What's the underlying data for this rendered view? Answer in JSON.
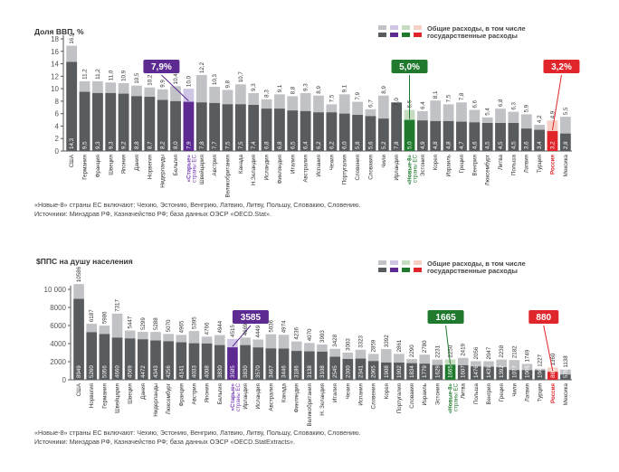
{
  "chart_data": [
    {
      "type": "bar",
      "stacked_overlay": true,
      "title": "Доля ВВП, %",
      "ylabel": "Доля ВВП, %",
      "xlabel": "",
      "ylim": [
        0,
        18
      ],
      "yticks": [
        0,
        2,
        4,
        6,
        8,
        10,
        12,
        14,
        16,
        18
      ],
      "legend": {
        "position": "top-right",
        "total_label": "Общие расходы, в том числе",
        "gov_label": "государственные расходы"
      },
      "categories": [
        "США",
        "Германия",
        "Франция",
        "Швеция",
        "Япония",
        "Дания",
        "Норвегия",
        "Нидерланды",
        "Бельгия",
        "«Старые» страны ЕС",
        "Швейцария",
        "Австрия",
        "Великобритания",
        "Канада",
        "Н.Зеландия",
        "Исландия",
        "Финляндия",
        "Италия",
        "Австралия",
        "Испания",
        "Чехия",
        "Португалия",
        "Словения",
        "Словакия",
        "Чили",
        "Ирландия",
        "«Новые-8» страны ЕС",
        "Эстония",
        "Корея",
        "Израиль",
        "Греция",
        "Венгрия",
        "Люксембург",
        "Литва",
        "Польша",
        "Латвия",
        "Турция",
        "Россия",
        "Мексика"
      ],
      "series": [
        {
          "name": "Общие расходы",
          "values": [
            16.9,
            11.2,
            11.2,
            11.0,
            10.9,
            10.5,
            10.2,
            9.9,
            10.4,
            10.0,
            12.2,
            10.3,
            9.8,
            10.7,
            9.3,
            8.3,
            9.1,
            8.8,
            9.3,
            8.9,
            7.5,
            9.1,
            7.9,
            6.7,
            8.9,
            7.0,
            6.6,
            6.4,
            8.1,
            7.5,
            7.8,
            6.6,
            5.4,
            6.8,
            6.3,
            5.9,
            4.2,
            4.9,
            5.5
          ]
        },
        {
          "name": "Государственные расходы",
          "values": [
            14.3,
            9.5,
            9.3,
            9.3,
            9.2,
            8.8,
            8.7,
            8.2,
            8.0,
            7.9,
            7.8,
            7.7,
            7.5,
            7.5,
            7.4,
            6.8,
            6.8,
            6.5,
            6.4,
            6.2,
            6.2,
            6.0,
            5.8,
            5.6,
            5.2,
            7.8,
            5.0,
            4.9,
            4.8,
            4.8,
            4.7,
            4.6,
            4.5,
            4.5,
            4.5,
            3.6,
            3.4,
            3.2,
            2.8
          ]
        }
      ],
      "highlights": [
        {
          "category": "«Старые» страны ЕС",
          "callout": "7,9%",
          "color": "#5c2a91",
          "light": "#cfc6e6",
          "label_color": "#7a3db8"
        },
        {
          "category": "«Новые-8» страны ЕС",
          "callout": "5,0%",
          "color": "#1f7a2e",
          "light": "#c5dcc0",
          "label_color": "#1f7a2e"
        },
        {
          "category": "Россия",
          "callout": "3,2%",
          "color": "#e0262b",
          "light": "#f6d0c4",
          "label_color": "#e0262b"
        }
      ],
      "note_lines": [
        "«Новые-8» страны ЕС включают: Чехию, Эстонию, Венгрию, Латвию, Литву, Польшу, Словакию, Словению.",
        "Источники: Минздрав РФ, Казначейство РФ; база данных ОЭСР «OECD.Stat»."
      ]
    },
    {
      "type": "bar",
      "stacked_overlay": true,
      "title": "$ППС на душу населения",
      "ylabel": "$ППС на душу населения",
      "xlabel": "",
      "ylim": [
        0,
        10000
      ],
      "yticks": [
        0,
        2000,
        4000,
        6000,
        8000,
        10000
      ],
      "ytick_labels": [
        "0",
        "2000",
        "4000",
        "6000",
        "8000",
        "10 000"
      ],
      "legend": {
        "position": "top-right",
        "total_label": "Общие расходы, в том числе",
        "gov_label": "государственные расходы"
      },
      "categories": [
        "США",
        "Норвегия",
        "Германия",
        "Швейцария",
        "Швеция",
        "Дания",
        "Нидерланды",
        "Люксембург",
        "Франция",
        "Австрия",
        "Япония",
        "Бельгия",
        "«Старые» страны ЕС",
        "Ирландия",
        "Исландия",
        "Австралия",
        "Канада",
        "Финляндия",
        "Великобритания",
        "Н. Зеландия",
        "Италия",
        "Чехия",
        "Испания",
        "Словения",
        "Корея",
        "Португалия",
        "Словакия",
        "Израиль",
        "Эстония",
        "«Новые-8» страны ЕС",
        "Литва",
        "Польша",
        "Венгрия",
        "Греция",
        "Чили",
        "Латвия",
        "Турция",
        "Россия",
        "Мексика"
      ],
      "series": [
        {
          "name": "Общие расходы",
          "values": [
            10586,
            6187,
            5986,
            7317,
            5447,
            5299,
            5288,
            5070,
            4965,
            5395,
            4766,
            4944,
            4515,
            4669,
            4449,
            5036,
            4974,
            4236,
            4070,
            3903,
            3428,
            3003,
            3323,
            2859,
            3392,
            2861,
            2290,
            2780,
            2231,
            2250,
            2419,
            2056,
            2047,
            2238,
            2182,
            1749,
            1227,
            1360,
            1138
          ]
        },
        {
          "name": "Государственные расходы",
          "values": [
            8949,
            5260,
            5056,
            4660,
            4569,
            4472,
            4343,
            4256,
            4141,
            4033,
            4008,
            3830,
            3585,
            3830,
            3570,
            3467,
            3446,
            3186,
            3138,
            3108,
            2545,
            2300,
            2341,
            2065,
            1908,
            1902,
            1834,
            1779,
            1629,
            1665,
            1607,
            1476,
            1439,
            1392,
            1077,
            1066,
            1047,
            880,
            578
          ]
        }
      ],
      "highlights": [
        {
          "category": "«Старые» страны ЕС",
          "callout": "3585",
          "color": "#5c2a91",
          "light": "#cfc6e6",
          "label_color": "#7a3db8"
        },
        {
          "category": "«Новые-8» страны ЕС",
          "callout": "1665",
          "color": "#1f7a2e",
          "light": "#c5dcc0",
          "label_color": "#1f7a2e"
        },
        {
          "category": "Россия",
          "callout": "880",
          "color": "#e0262b",
          "light": "#f6d0c4",
          "label_color": "#e0262b"
        }
      ],
      "note_lines": [
        "«Новые-8» страны ЕС включают: Чехию, Эстонию, Венгрию, Латвию, Литву, Польшу, Словакию, Словению.",
        "Источники: Минздрав РФ, Казначейство РФ; база данных ОЭСР «OECD.StatExtracts»."
      ]
    }
  ],
  "colors": {
    "total": "#c0c2c6",
    "gov": "#585c5e",
    "legend_swatches_top": [
      "#c0c2c6",
      "#cfc6e6",
      "#c5dcc0",
      "#f6d0c4"
    ],
    "legend_swatches_bottom": [
      "#585c5e",
      "#5c2a91",
      "#1f7a2e",
      "#e0262b"
    ]
  }
}
